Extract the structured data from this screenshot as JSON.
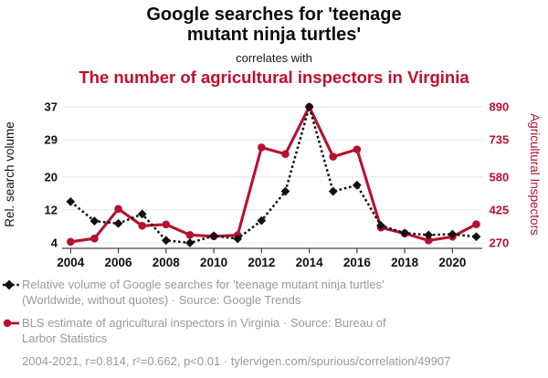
{
  "header": {
    "title": "Google searches for 'teenage mutant ninja turtles'",
    "connector": "correlates with",
    "subtitle": "The number of agricultural inspectors in Virginia"
  },
  "chart_data": {
    "type": "line",
    "x": [
      2004,
      2005,
      2006,
      2007,
      2008,
      2009,
      2010,
      2011,
      2012,
      2013,
      2014,
      2015,
      2016,
      2017,
      2018,
      2019,
      2020,
      2021
    ],
    "x_ticks": [
      2004,
      2006,
      2008,
      2010,
      2012,
      2014,
      2016,
      2018,
      2020
    ],
    "series": [
      {
        "name": "Google searches for 'teenage mutant ninja turtles'",
        "axis": "left",
        "color": "#111111",
        "line_style": "dotted",
        "marker": "diamond",
        "values": [
          14,
          9.3,
          8.7,
          11,
          4.6,
          4,
          5.7,
          5,
          9.4,
          16.5,
          37,
          16.5,
          18,
          8.2,
          6.4,
          5.9,
          6.1,
          5.5
        ]
      },
      {
        "name": "Agricultural inspectors in Virginia",
        "axis": "right",
        "color": "#b5122f",
        "line_style": "solid",
        "marker": "circle",
        "values": [
          275,
          290,
          425,
          348,
          354,
          306,
          300,
          305,
          705,
          675,
          890,
          663,
          696,
          340,
          313,
          281,
          298,
          355
        ]
      }
    ],
    "left_axis": {
      "title": "Rel. search volume",
      "ticks": [
        4,
        12,
        20,
        29,
        37
      ],
      "range": [
        4,
        37
      ]
    },
    "right_axis": {
      "title": "Agricultural Inspectors",
      "ticks": [
        270,
        425,
        580,
        735,
        890
      ],
      "range": [
        270,
        890
      ]
    },
    "grid": true,
    "legend_position": "bottom"
  },
  "legend": {
    "items": [
      {
        "marker": "black-diamond-dotted-line",
        "label": "Relative volume of Google searches for 'teenage mutant ninja turtles' (Worldwide, without quotes) · Source: Google Trends"
      },
      {
        "marker": "red-circle-solid-line",
        "label": "BLS estimate of agricultural inspectors in Virginia · Source: Bureau of Larbor Statistics"
      }
    ],
    "footer": "2004-2021, r=0.814, r²=0.662, p<0.01 · tylervigen.com/spurious/correlation/49907"
  },
  "colors": {
    "title_red": "#c20d2e",
    "line_red": "#b5122f",
    "text_black": "#111111",
    "legend_gray": "#999999",
    "grid_gray": "#e9e9e9",
    "axis_gray": "#444444"
  }
}
